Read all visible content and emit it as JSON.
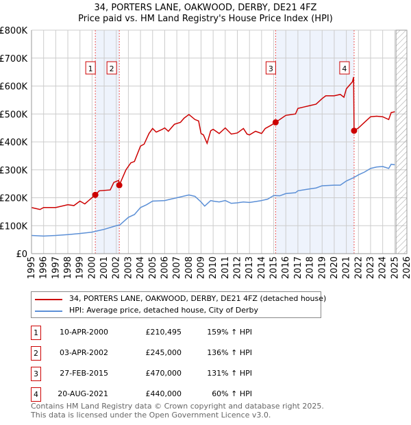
{
  "chart_data": {
    "type": "line",
    "title": "34, PORTERS LANE, OAKWOOD, DERBY, DE21 4FZ",
    "subtitle": "Price paid vs. HM Land Registry's House Price Index (HPI)",
    "xlim": [
      1995,
      2026
    ],
    "ylim": [
      0,
      800000
    ],
    "yticks": [
      {
        "v": 0,
        "label": "£0"
      },
      {
        "v": 100000,
        "label": "£100K"
      },
      {
        "v": 200000,
        "label": "£200K"
      },
      {
        "v": 300000,
        "label": "£300K"
      },
      {
        "v": 400000,
        "label": "£400K"
      },
      {
        "v": 500000,
        "label": "£500K"
      },
      {
        "v": 600000,
        "label": "£600K"
      },
      {
        "v": 700000,
        "label": "£700K"
      },
      {
        "v": 800000,
        "label": "£800K"
      }
    ],
    "xticks": [
      "1995",
      "1996",
      "1997",
      "1998",
      "1999",
      "2000",
      "2001",
      "2002",
      "2003",
      "2004",
      "2005",
      "2006",
      "2007",
      "2008",
      "2009",
      "2010",
      "2011",
      "2012",
      "2013",
      "2014",
      "2015",
      "2016",
      "2017",
      "2018",
      "2019",
      "2020",
      "2021",
      "2022",
      "2023",
      "2024",
      "2025",
      "2026"
    ],
    "grid": true,
    "colors": {
      "red": "#cc0000",
      "blue": "#5b8fd6",
      "shade": "#eef3fc"
    },
    "series": [
      {
        "name": "34, PORTERS LANE, OAKWOOD, DERBY, DE21 4FZ (detached house)",
        "color": "#cc0000",
        "x": [
          1995,
          1995.7,
          1996,
          1997,
          1998,
          1998.5,
          1999,
          1999.4,
          2000.27,
          2000.6,
          2001.5,
          2001.8,
          2002.2,
          2002.25,
          2002.8,
          2003.2,
          2003.5,
          2004,
          2004.3,
          2004.7,
          2005,
          2005.3,
          2005.8,
          2006,
          2006.3,
          2006.8,
          2007.3,
          2007.6,
          2008,
          2008.5,
          2008.8,
          2009,
          2009.2,
          2009.5,
          2009.8,
          2010,
          2010.5,
          2011,
          2011.5,
          2012,
          2012.5,
          2012.8,
          2013,
          2013.5,
          2014,
          2014.3,
          2014.8,
          2015.16,
          2015.5,
          2016,
          2016.8,
          2017,
          2017.5,
          2018,
          2018.5,
          2019,
          2019.3,
          2020,
          2020.5,
          2020.8,
          2021,
          2021.5,
          2021.6,
          2021.64,
          2022,
          2022.5,
          2023,
          2023.5,
          2024,
          2024.5,
          2024.7,
          2025
        ],
        "y": [
          165000,
          158000,
          165000,
          165000,
          175000,
          172000,
          188000,
          178000,
          210495,
          225000,
          228000,
          255000,
          262000,
          245000,
          300000,
          325000,
          330000,
          385000,
          392000,
          430000,
          448000,
          435000,
          445000,
          450000,
          438000,
          463000,
          470000,
          485000,
          498000,
          480000,
          475000,
          430000,
          425000,
          395000,
          440000,
          445000,
          430000,
          450000,
          428000,
          432000,
          448000,
          428000,
          425000,
          438000,
          430000,
          448000,
          460000,
          470000,
          480000,
          495000,
          500000,
          520000,
          525000,
          530000,
          535000,
          555000,
          565000,
          565000,
          570000,
          560000,
          590000,
          615000,
          632000,
          440000,
          450000,
          470000,
          490000,
          492000,
          490000,
          480000,
          505000,
          508000
        ]
      },
      {
        "name": "HPI: Average price, detached house, City of Derby",
        "color": "#5b8fd6",
        "x": [
          1995,
          1996,
          1997,
          1998,
          1999,
          2000,
          2000.3,
          2001,
          2002,
          2002.3,
          2003,
          2003.5,
          2004,
          2004.5,
          2005,
          2006,
          2006.5,
          2007,
          2008,
          2008.5,
          2009,
          2009.3,
          2009.8,
          2010,
          2010.5,
          2011,
          2011.5,
          2012,
          2012.5,
          2013,
          2014,
          2014.5,
          2015,
          2015.5,
          2016,
          2016.8,
          2017,
          2018,
          2018.5,
          2019,
          2020,
          2020.5,
          2021,
          2021.6,
          2022,
          2022.5,
          2023,
          2023.5,
          2024,
          2024.5,
          2024.7,
          2025
        ],
        "y": [
          65000,
          63000,
          65000,
          68000,
          72000,
          77000,
          80000,
          87000,
          100000,
          103000,
          130000,
          140000,
          165000,
          175000,
          188000,
          190000,
          195000,
          200000,
          210000,
          205000,
          185000,
          170000,
          190000,
          188000,
          185000,
          190000,
          180000,
          182000,
          185000,
          183000,
          190000,
          195000,
          208000,
          207000,
          215000,
          218000,
          225000,
          232000,
          235000,
          243000,
          245000,
          245000,
          260000,
          272000,
          282000,
          292000,
          305000,
          310000,
          312000,
          305000,
          320000,
          318000
        ]
      }
    ],
    "shaded_ranges": [
      [
        2000.27,
        2002.25
      ],
      [
        2015.16,
        2021.64
      ]
    ],
    "forecast_hatch_from": 2025.1,
    "sales": [
      {
        "n": "1",
        "x": 2000.27,
        "price": 210495,
        "date": "10-APR-2000",
        "price_label": "£210,495",
        "hpi": "159% ↑ HPI"
      },
      {
        "n": "2",
        "x": 2002.25,
        "price": 245000,
        "date": "03-APR-2002",
        "price_label": "£245,000",
        "hpi": "136% ↑ HPI"
      },
      {
        "n": "3",
        "x": 2015.16,
        "price": 470000,
        "date": "27-FEB-2015",
        "price_label": "£470,000",
        "hpi": "131% ↑ HPI"
      },
      {
        "n": "4",
        "x": 2021.64,
        "price": 440000,
        "date": "20-AUG-2021",
        "price_label": "£440,000",
        "hpi": "60% ↑ HPI"
      }
    ],
    "legend_placement": "below"
  },
  "footer": {
    "line1": "Contains HM Land Registry data © Crown copyright and database right 2025.",
    "line2": "This data is licensed under the Open Government Licence v3.0."
  }
}
